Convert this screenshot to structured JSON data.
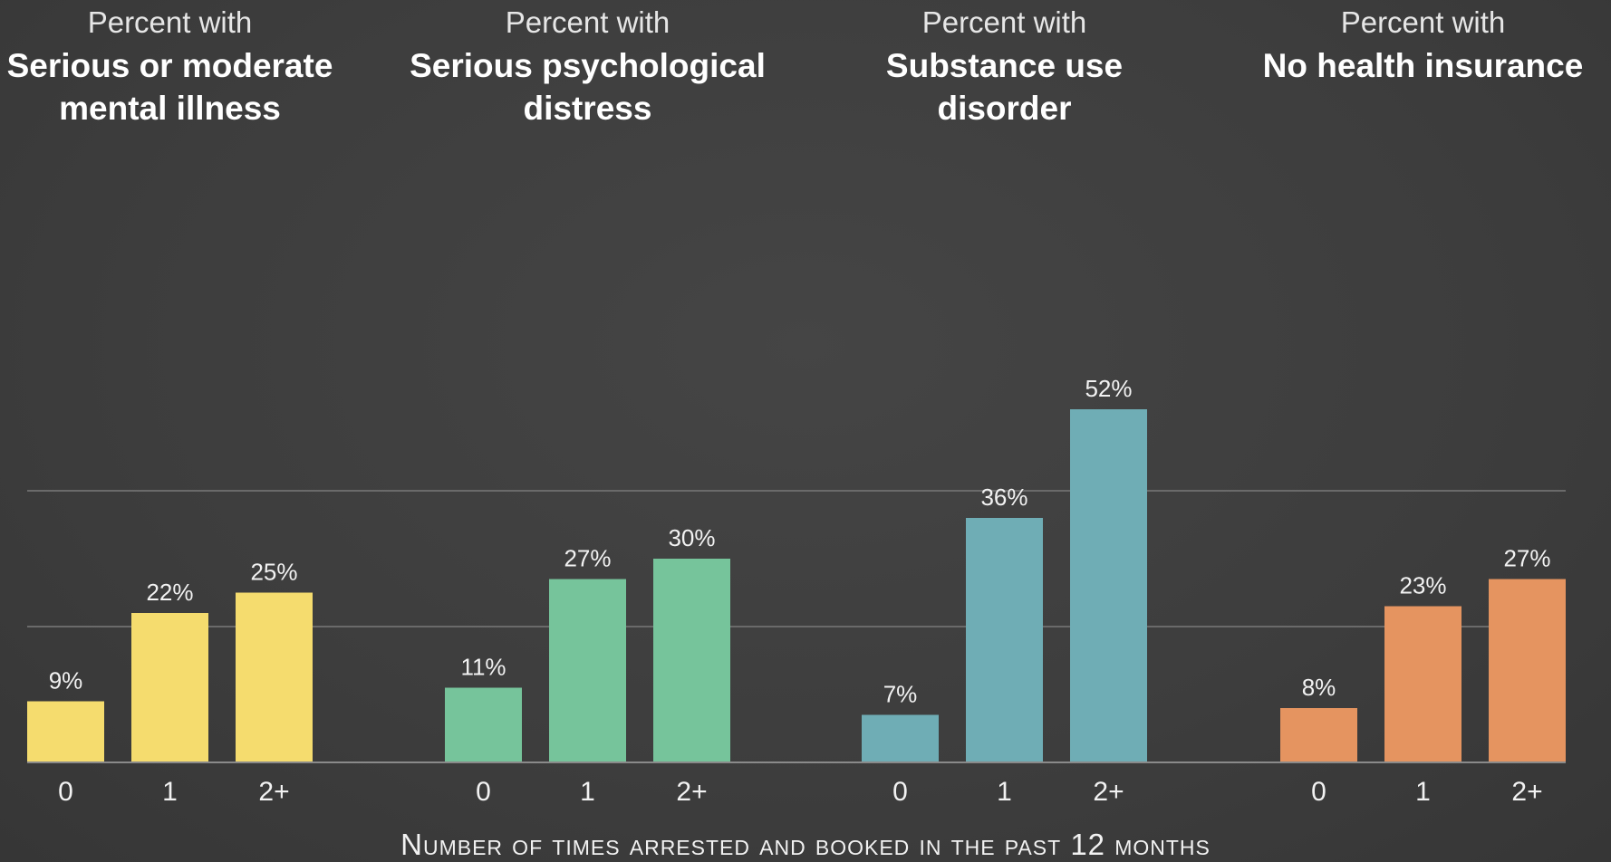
{
  "chart_data": {
    "type": "bar",
    "x_title": "Number of times arrested and booked in the past 12 months",
    "categories": [
      "0",
      "1",
      "2+"
    ],
    "ylim": [
      0,
      60
    ],
    "gridlines": [
      20,
      40
    ],
    "panels": [
      {
        "subtitle": "Percent with",
        "title_lines": [
          "Serious or moderate",
          "mental illness"
        ],
        "values": [
          9,
          22,
          25
        ],
        "labels": [
          "9%",
          "22%",
          "25%"
        ],
        "color": "#f5dc6e"
      },
      {
        "subtitle": "Percent with",
        "title_lines": [
          "Serious psychological",
          "distress"
        ],
        "values": [
          11,
          27,
          30
        ],
        "labels": [
          "11%",
          "27%",
          "30%"
        ],
        "color": "#76c49b"
      },
      {
        "subtitle": "Percent with",
        "title_lines": [
          "Substance use",
          "disorder"
        ],
        "values": [
          7,
          36,
          52
        ],
        "labels": [
          "7%",
          "36%",
          "52%"
        ],
        "color": "#6fadb5"
      },
      {
        "subtitle": "Percent with",
        "title_lines": [
          "No health insurance"
        ],
        "values": [
          8,
          23,
          27
        ],
        "labels": [
          "8%",
          "23%",
          "27%"
        ],
        "color": "#e59460"
      }
    ]
  }
}
